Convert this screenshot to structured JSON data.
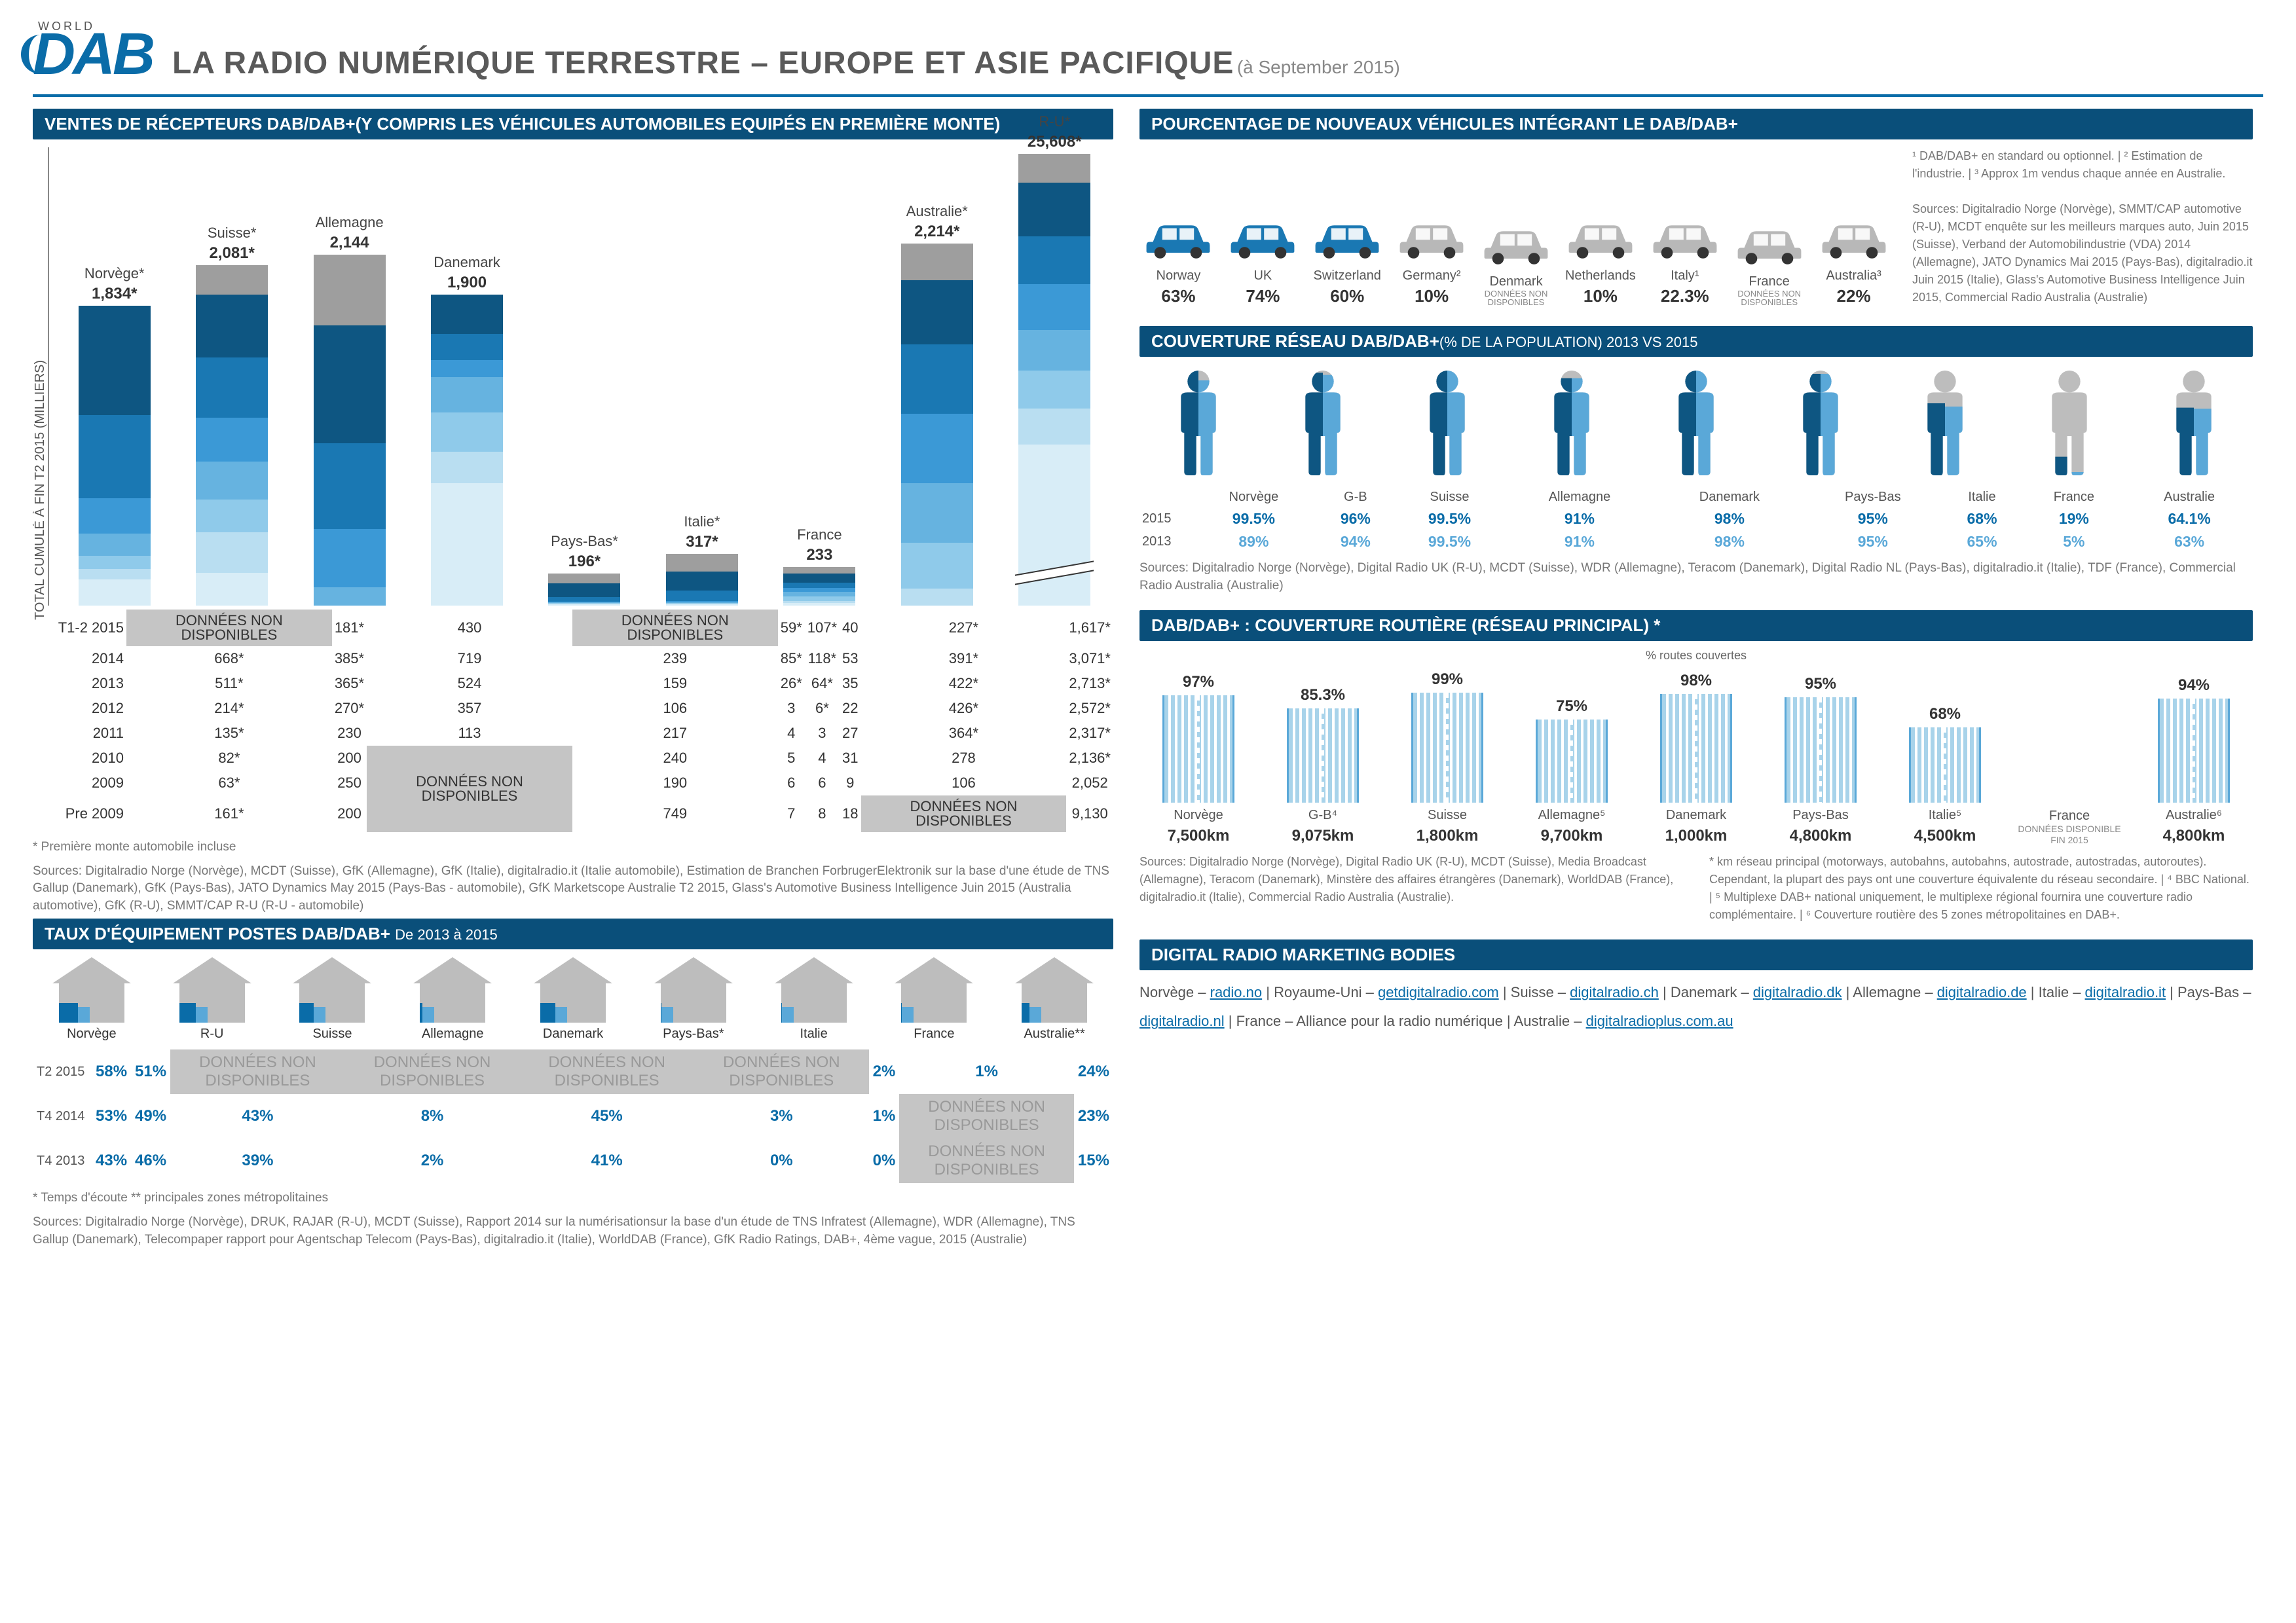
{
  "logo_world": "WORLD",
  "logo_dab": "DAB",
  "title_main": "LA RADIO NUMÉRIQUE TERRESTRE – EUROPE ET ASIE PACIFIQUE",
  "title_date": "(à September 2015)",
  "nd_label": "DONNÉES NON DISPONIBLES",
  "sales": {
    "title": "VENTES DE RÉCEPTEURS DAB/DAB+(Y COMPRIS LES VÉHICULES AUTOMOBILES EQUIPÉS EN PREMIÈRE MONTE)",
    "ylabel": "TOTAL CUMULÉ À FIN T2 2015\n(MILLIERS)",
    "countries": [
      "Norvège*",
      "Suisse*",
      "Allemagne",
      "Danemark",
      "Pays-Bas*",
      "Italie*",
      "France",
      "Australie*",
      "R-U*"
    ],
    "totals": [
      "1,834*",
      "2,081*",
      "2,144",
      "1,900",
      "196*",
      "317*",
      "233",
      "2,214*",
      "25,608*"
    ],
    "segment_colors": [
      "#9e9e9e",
      "#0e5682",
      "#1a78b3",
      "#3b99d6",
      "#66b3e0",
      "#8fcaea",
      "#b9def1",
      "#d8edf7"
    ],
    "bar_scale_divisor": 4,
    "ru_break": true,
    "ru_display_height": 690,
    "segments": [
      [
        0,
        668,
        511,
        214,
        135,
        82,
        63,
        161
      ],
      [
        181,
        385,
        365,
        270,
        230,
        200,
        250,
        200
      ],
      [
        430,
        719,
        524,
        357,
        113,
        0,
        0,
        0
      ],
      [
        0,
        239,
        159,
        106,
        217,
        240,
        190,
        749
      ],
      [
        59,
        85,
        26,
        3,
        4,
        5,
        6,
        7
      ],
      [
        107,
        118,
        64,
        6,
        3,
        4,
        6,
        8
      ],
      [
        40,
        53,
        35,
        22,
        27,
        31,
        9,
        18
      ],
      [
        227,
        391,
        422,
        426,
        364,
        278,
        106,
        0
      ],
      [
        1617,
        3071,
        2713,
        2572,
        2317,
        2136,
        2052,
        9130
      ]
    ],
    "rows": [
      {
        "label": "T1-2 2015",
        "cells": [
          "ND",
          "181*",
          "430",
          "ND",
          "59*",
          "107*",
          "40",
          "227*",
          "1,617*"
        ]
      },
      {
        "label": "2014",
        "cells": [
          "668*",
          "385*",
          "719",
          "239",
          "85*",
          "118*",
          "53",
          "391*",
          "3,071*"
        ]
      },
      {
        "label": "2013",
        "cells": [
          "511*",
          "365*",
          "524",
          "159",
          "26*",
          "64*",
          "35",
          "422*",
          "2,713*"
        ]
      },
      {
        "label": "2012",
        "cells": [
          "214*",
          "270*",
          "357",
          "106",
          "3",
          "6*",
          "22",
          "426*",
          "2,572*"
        ]
      },
      {
        "label": "2011",
        "cells": [
          "135*",
          "230",
          "113",
          "217",
          "4",
          "3",
          "27",
          "364*",
          "2,317*"
        ]
      },
      {
        "label": "2010",
        "cells": [
          "82*",
          "200",
          "NDBIG",
          "240",
          "5",
          "4",
          "31",
          "278",
          "2,136*"
        ]
      },
      {
        "label": "2009",
        "cells": [
          "63*",
          "250",
          "NDBIG",
          "190",
          "6",
          "6",
          "9",
          "106",
          "2,052"
        ]
      },
      {
        "label": "Pre 2009",
        "cells": [
          "161*",
          "200",
          "NDBIG",
          "749",
          "7",
          "8",
          "18",
          "ND",
          "9,130"
        ]
      }
    ],
    "footnote1": "* Première monte automobile incluse",
    "sources": "Sources: Digitalradio Norge (Norvège), MCDT (Suisse), GfK (Allemagne), GfK (Italie), digitalradio.it (Italie automobile), Estimation de Branchen ForbrugerElektronik sur la base d'une étude de TNS Gallup (Danemark), GfK (Pays-Bas), JATO Dynamics May 2015 (Pays-Bas - automobile), GfK Marketscope Australie T2 2015, Glass's Automotive Business Intelligence Juin 2015 (Australia automotive), GfK (R-U), SMMT/CAP R-U (R-U - automobile)"
  },
  "penetration": {
    "title": "TAUX D'ÉQUIPEMENT POSTES DAB/DAB+",
    "title_sub": "De 2013 à 2015",
    "countries": [
      "Norvège",
      "R-U",
      "Suisse",
      "Allemagne",
      "Danemark",
      "Pays-Bas*",
      "Italie",
      "France",
      "Australie**"
    ],
    "fill_pct": [
      58,
      51,
      43,
      8,
      45,
      3,
      2,
      1,
      24
    ],
    "rows": [
      {
        "label": "T2 2015",
        "cells": [
          "58%",
          "51%",
          "ND",
          "ND",
          "ND",
          "ND",
          "2%",
          "1%",
          "24%"
        ]
      },
      {
        "label": "T4 2014",
        "cells": [
          "53%",
          "49%",
          "43%",
          "8%",
          "45%",
          "3%",
          "1%",
          "ND",
          "23%"
        ]
      },
      {
        "label": "T4 2013",
        "cells": [
          "43%",
          "46%",
          "39%",
          "2%",
          "41%",
          "0%",
          "0%",
          "ND",
          "15%"
        ]
      }
    ],
    "footnote1": "* Temps d'écoute   ** principales zones métropolitaines",
    "sources": "Sources: Digitalradio Norge (Norvège), DRUK, RAJAR (R-U), MCDT (Suisse), Rapport 2014 sur la numérisationsur la base d'un étude de TNS Infratest (Allemagne), WDR (Allemagne), TNS Gallup (Danemark), Telecompaper rapport pour Agentschap Telecom (Pays-Bas), digitalradio.it (Italie), WorldDAB (France), GfK Radio Ratings, DAB+, 4ème vague, 2015 (Australie)"
  },
  "vehicles": {
    "title": "POURCENTAGE DE NOUVEAUX VÉHICULES INTÉGRANT LE DAB/DAB+",
    "items": [
      {
        "name": "Norway",
        "pct": "63%",
        "val": 63,
        "filled": true
      },
      {
        "name": "UK",
        "pct": "74%",
        "val": 74,
        "filled": true
      },
      {
        "name": "Switzerland",
        "pct": "60%",
        "val": 60,
        "filled": true
      },
      {
        "name": "Germany²",
        "pct": "10%",
        "val": 10,
        "filled": false
      },
      {
        "name": "Denmark",
        "pct": "ND",
        "val": 0,
        "filled": false
      },
      {
        "name": "Netherlands",
        "pct": "10%",
        "val": 10,
        "filled": false
      },
      {
        "name": "Italy¹",
        "pct": "22.3%",
        "val": 22,
        "filled": false
      },
      {
        "name": "France",
        "pct": "ND",
        "val": 0,
        "filled": false
      },
      {
        "name": "Australia³",
        "pct": "22%",
        "val": 22,
        "filled": false
      }
    ],
    "color_filled": "#1a78b3",
    "color_empty": "#b8b8b8",
    "notes": "¹ DAB/DAB+ en standard ou optionnel.  |  ² Estimation de l'industrie.  |  ³ Approx 1m vendus chaque année en Australie.",
    "sources": "Sources: Digitalradio Norge (Norvège), SMMT/CAP automotive (R-U), MCDT enquête sur les meilleurs marques auto, Juin 2015 (Suisse), Verband der Automobilindustrie (VDA) 2014 (Allemagne), JATO Dynamics Mai 2015 (Pays-Bas), digitalradio.it Juin 2015 (Italie), Glass's Automotive Business Intelligence Juin 2015, Commercial Radio Australia (Australie)"
  },
  "coverage": {
    "title": "COUVERTURE RÉSEAU DAB/DAB+",
    "title_sub": "(% DE LA POPULATION) 2013 VS 2015",
    "countries": [
      "Norvège",
      "G-B",
      "Suisse",
      "Allemagne",
      "Danemark",
      "Pays-Bas",
      "Italie",
      "France",
      "Australie"
    ],
    "v2015": [
      "99.5%",
      "96%",
      "99.5%",
      "91%",
      "98%",
      "95%",
      "68%",
      "19%",
      "64.1%"
    ],
    "v2013": [
      "89%",
      "94%",
      "99.5%",
      "91%",
      "98%",
      "95%",
      "65%",
      "5%",
      "63%"
    ],
    "pct15": [
      99,
      96,
      99,
      91,
      98,
      95,
      68,
      19,
      64
    ],
    "pct13": [
      89,
      94,
      99,
      91,
      98,
      95,
      65,
      5,
      63
    ],
    "color15": "#0e5682",
    "color13": "#5aa8d8",
    "color_bg": "#bdbdbd",
    "sources": "Sources: Digitalradio Norge (Norvège), Digital Radio UK (R-U), MCDT (Suisse), WDR (Allemagne), Teracom (Danemark), Digital Radio NL (Pays-Bas), digitalradio.it (Italie), TDF (France), Commercial Radio Australia (Australie)"
  },
  "roads": {
    "title": "DAB/DAB+ : COUVERTURE ROUTIÈRE (RÉSEAU PRINCIPAL) *",
    "routes_label": "% routes couvertes",
    "items": [
      {
        "name": "Norvège",
        "pct": "97%",
        "h": 97,
        "km": "7,500km"
      },
      {
        "name": "G-B⁴",
        "pct": "85.3%",
        "h": 85,
        "km": "9,075km"
      },
      {
        "name": "Suisse",
        "pct": "99%",
        "h": 99,
        "km": "1,800km"
      },
      {
        "name": "Allemagne⁵",
        "pct": "75%",
        "h": 75,
        "km": "9,700km"
      },
      {
        "name": "Danemark",
        "pct": "98%",
        "h": 98,
        "km": "1,000km"
      },
      {
        "name": "Pays-Bas",
        "pct": "95%",
        "h": 95,
        "km": "4,800km"
      },
      {
        "name": "Italie⁵",
        "pct": "68%",
        "h": 68,
        "km": "4,500km"
      },
      {
        "name": "France",
        "pct": "ND",
        "h": 0,
        "km": "DONNÉES DISPONIBLE FIN 2015"
      },
      {
        "name": "Australie⁶",
        "pct": "94%",
        "h": 94,
        "km": "4,800km"
      }
    ],
    "bar_max": 170,
    "sources": "Sources: Digitalradio Norge (Norvège), Digital Radio UK (R-U), MCDT (Suisse), Media Broadcast (Allemagne), Teracom (Danemark), Minstère des affaires étrangères (Danemark), WorldDAB (France), digitalradio.it (Italie), Commercial Radio Australia (Australie).",
    "notes": "* km réseau principal (motorways, autobahns, autobahns, autostrade, autostradas, autoroutes). Cependant, la plupart des pays ont une couverture équivalente du réseau secondaire.  |  ⁴ BBC National.  |  ⁵ Multiplexe DAB+ national uniquement, le multiplexe régional fournira une couverture radio complémentaire.  |  ⁶ Couverture routière des 5 zones métropolitaines en DAB+."
  },
  "marketing": {
    "title": "DIGITAL RADIO MARKETING BODIES",
    "items": [
      {
        "country": "Norvège",
        "link": "radio.no"
      },
      {
        "country": "Royaume-Uni",
        "link": "getdigitalradio.com"
      },
      {
        "country": "Suisse",
        "link": "digitalradio.ch"
      },
      {
        "country": "Danemark",
        "link": "digitalradio.dk"
      },
      {
        "country": "Allemagne",
        "link": "digitalradio.de"
      },
      {
        "country": "Italie",
        "link": "digitalradio.it"
      },
      {
        "country": "Pays-Bas",
        "link": "digitalradio.nl"
      },
      {
        "country": "France",
        "link": "Alliance pour la radio numérique",
        "nolink": true
      },
      {
        "country": "Australie",
        "link": "digitalradioplus.com.au"
      }
    ]
  }
}
